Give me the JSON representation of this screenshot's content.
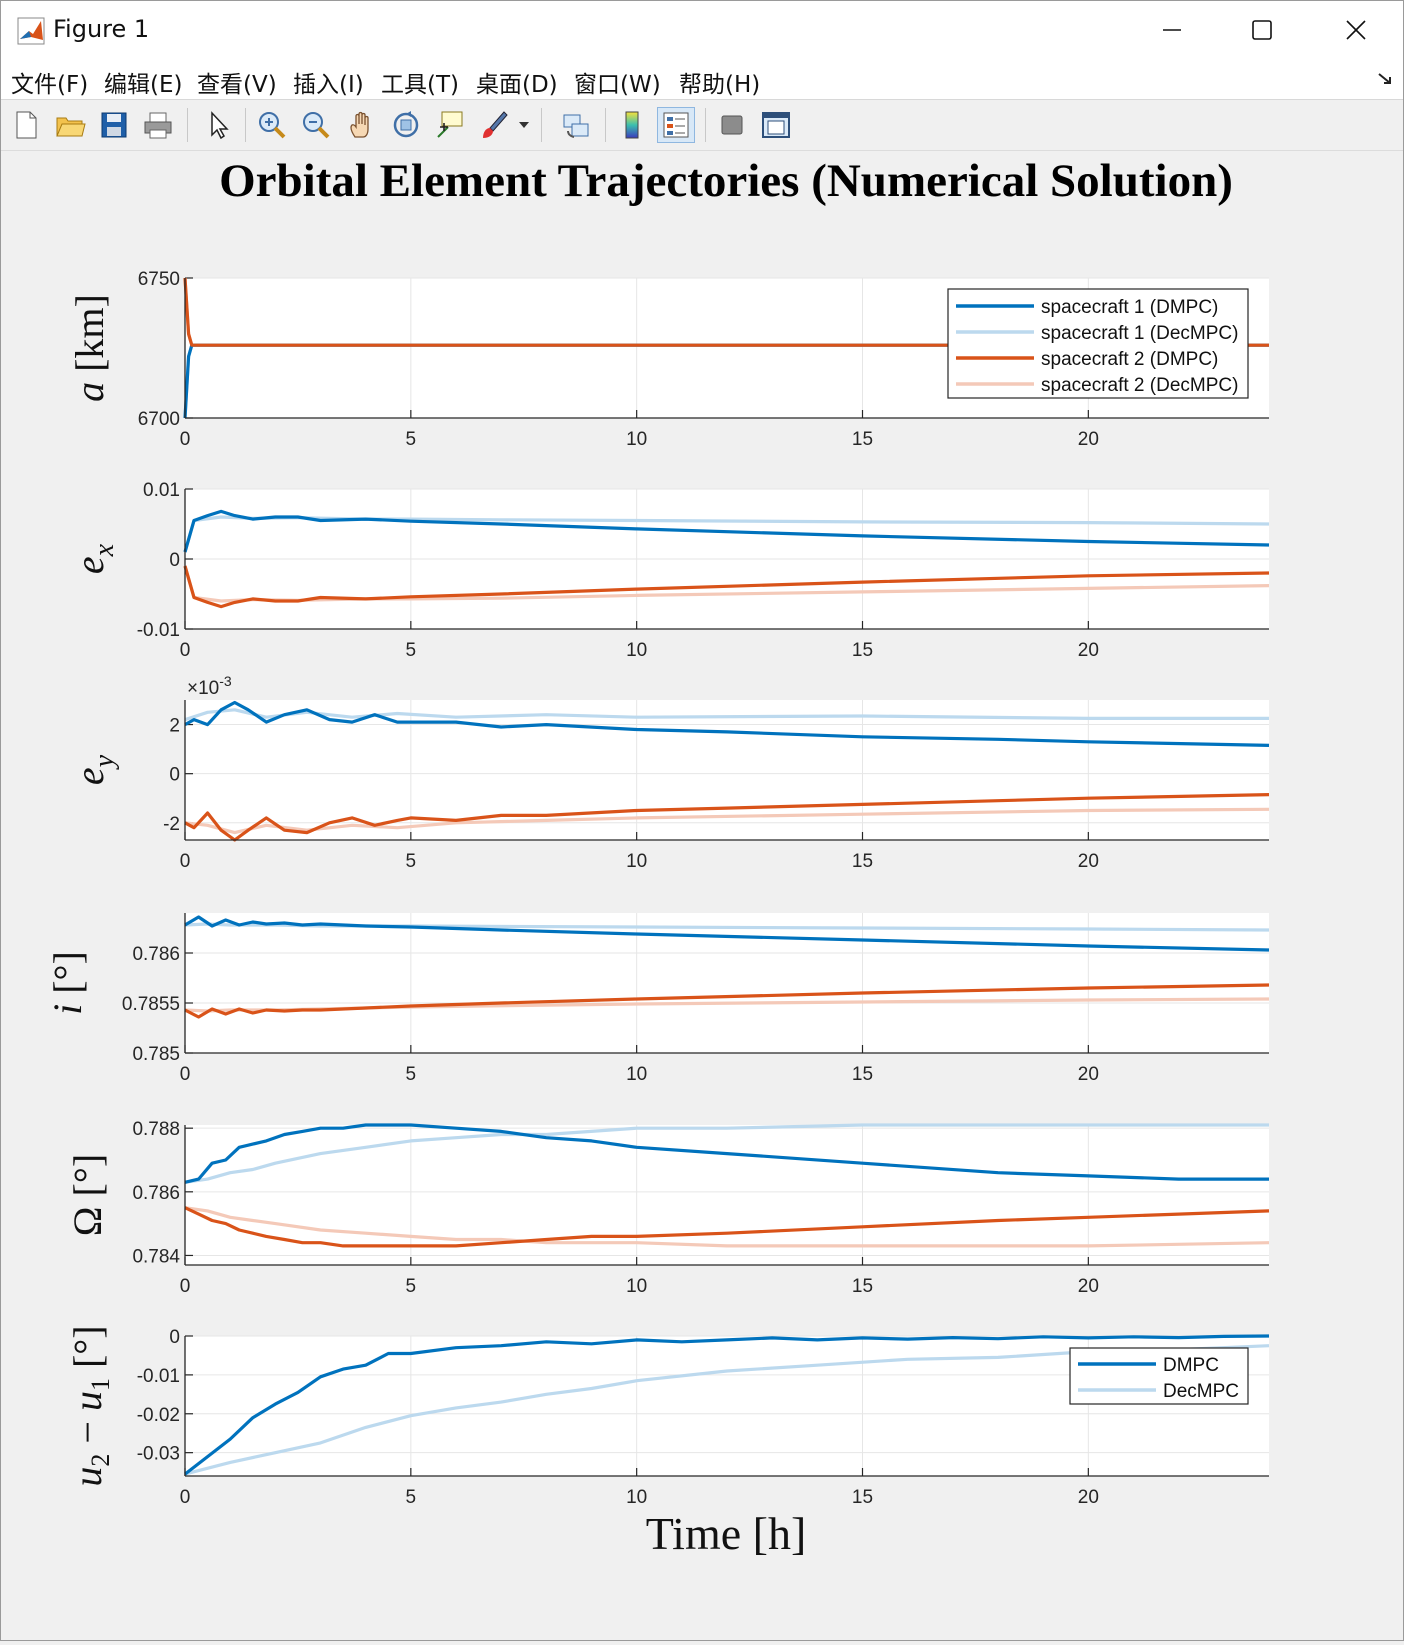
{
  "window": {
    "title": "Figure 1"
  },
  "menu": [
    "文件(F)",
    "编辑(E)",
    "查看(V)",
    "插入(I)",
    "工具(T)",
    "桌面(D)",
    "窗口(W)",
    "帮助(H)"
  ],
  "toolbar_icons": [
    "new-figure-icon",
    "open-file-icon",
    "save-icon",
    "print-icon",
    "select-arrow-icon",
    "zoom-in-icon",
    "zoom-out-icon",
    "pan-hand-icon",
    "rotate-3d-icon",
    "data-cursor-icon",
    "brush-icon",
    "brush-dropdown-icon",
    "link-plot-icon",
    "colorbar-icon",
    "legend-icon",
    "hide-plot-tools-icon",
    "show-plot-tools-icon"
  ],
  "colors": {
    "s1_dmpc": "#0072bd",
    "s1_dec": "#bcd9ee",
    "s2_dmpc": "#d95319",
    "s2_dec": "#f4c9b8"
  },
  "chart_data": {
    "type": "line",
    "title": "Orbital Element Trajectories (Numerical Solution)",
    "xlabel": "Time [h]",
    "xlim": [
      0,
      24
    ],
    "xticks": [
      0,
      5,
      10,
      15,
      20
    ],
    "legend_main": [
      "spacecraft 1 (DMPC)",
      "spacecraft 1 (DecMPC)",
      "spacecraft 2 (DMPC)",
      "spacecraft 2 (DecMPC)"
    ],
    "legend_diff": [
      "DMPC",
      "DecMPC"
    ],
    "subplots": [
      {
        "ylabel": "a [km]",
        "ylim": [
          6700,
          6750
        ],
        "yticks": [
          6700,
          6750
        ],
        "ytick_labels": [
          "6700",
          "6750"
        ],
        "series": [
          {
            "name": "spacecraft 1 (DMPC)",
            "color": "s1_dmpc",
            "x": [
              0,
              0.08,
              0.15,
              0.3,
              24
            ],
            "y": [
              6700,
              6722,
              6726,
              6726,
              6726
            ]
          },
          {
            "name": "spacecraft 1 (DecMPC)",
            "color": "s1_dec",
            "x": [
              0,
              0.08,
              0.15,
              0.3,
              24
            ],
            "y": [
              6700,
              6722,
              6726,
              6726,
              6726
            ]
          },
          {
            "name": "spacecraft 2 (DMPC)",
            "color": "s2_dmpc",
            "x": [
              0,
              0.08,
              0.15,
              0.3,
              24
            ],
            "y": [
              6750,
              6730,
              6726,
              6726,
              6726
            ]
          },
          {
            "name": "spacecraft 2 (DecMPC)",
            "color": "s2_dec",
            "x": [
              0,
              0.08,
              0.15,
              0.3,
              24
            ],
            "y": [
              6750,
              6730,
              6726,
              6726,
              6726
            ]
          }
        ]
      },
      {
        "ylabel": "e_x",
        "ylim": [
          -0.01,
          0.01
        ],
        "yticks": [
          -0.01,
          0,
          0.01
        ],
        "ytick_labels": [
          "-0.01",
          "0",
          "0.01"
        ],
        "series": [
          {
            "name": "spacecraft 1 (DMPC)",
            "color": "s1_dmpc",
            "x": [
              0,
              0.2,
              0.5,
              0.8,
              1.1,
              1.5,
              2,
              2.5,
              3,
              4,
              5,
              7,
              10,
              15,
              20,
              24
            ],
            "y": [
              0.001,
              0.0055,
              0.0062,
              0.0068,
              0.0062,
              0.0057,
              0.006,
              0.006,
              0.0055,
              0.0057,
              0.0054,
              0.005,
              0.0043,
              0.0033,
              0.0025,
              0.002
            ]
          },
          {
            "name": "spacecraft 1 (DecMPC)",
            "color": "s1_dec",
            "x": [
              0,
              0.2,
              0.8,
              1.5,
              2.5,
              4,
              5,
              7,
              10,
              15,
              20,
              24
            ],
            "y": [
              0.001,
              0.0055,
              0.006,
              0.0058,
              0.0059,
              0.0057,
              0.0057,
              0.0056,
              0.0055,
              0.0053,
              0.0052,
              0.005
            ]
          },
          {
            "name": "spacecraft 2 (DMPC)",
            "color": "s2_dmpc",
            "x": [
              0,
              0.2,
              0.5,
              0.8,
              1.1,
              1.5,
              2,
              2.5,
              3,
              4,
              5,
              7,
              10,
              15,
              20,
              24
            ],
            "y": [
              -0.001,
              -0.0055,
              -0.0062,
              -0.0068,
              -0.0062,
              -0.0057,
              -0.006,
              -0.006,
              -0.0055,
              -0.0057,
              -0.0054,
              -0.005,
              -0.0043,
              -0.0033,
              -0.0024,
              -0.002
            ]
          },
          {
            "name": "spacecraft 2 (DecMPC)",
            "color": "s2_dec",
            "x": [
              0,
              0.2,
              0.8,
              1.5,
              2.5,
              4,
              5,
              7,
              10,
              15,
              20,
              24
            ],
            "y": [
              -0.001,
              -0.0055,
              -0.006,
              -0.0058,
              -0.0059,
              -0.0057,
              -0.0057,
              -0.0056,
              -0.0052,
              -0.0047,
              -0.0042,
              -0.0038
            ]
          }
        ]
      },
      {
        "ylabel": "e_y",
        "ylim": [
          -2.7,
          3.0
        ],
        "yticks": [
          -2,
          0,
          2
        ],
        "ytick_labels": [
          "-2",
          "0",
          "2"
        ],
        "exponent_label": "×10",
        "series": [
          {
            "name": "spacecraft 1 (DMPC)",
            "color": "s1_dmpc",
            "x": [
              0,
              0.2,
              0.5,
              0.8,
              1.1,
              1.4,
              1.8,
              2.2,
              2.7,
              3.2,
              3.7,
              4.2,
              4.7,
              5,
              6,
              7,
              8,
              10,
              12,
              15,
              18,
              20,
              24
            ],
            "y": [
              2.0,
              2.2,
              2.0,
              2.6,
              2.9,
              2.6,
              2.1,
              2.4,
              2.6,
              2.2,
              2.1,
              2.4,
              2.1,
              2.1,
              2.1,
              1.9,
              2.0,
              1.8,
              1.7,
              1.5,
              1.4,
              1.3,
              1.15
            ]
          },
          {
            "name": "spacecraft 1 (DecMPC)",
            "color": "s1_dec",
            "x": [
              0,
              0.5,
              1.1,
              1.8,
              2.7,
              3.7,
              4.7,
              6,
              8,
              10,
              15,
              20,
              24
            ],
            "y": [
              2.2,
              2.5,
              2.6,
              2.3,
              2.5,
              2.3,
              2.45,
              2.3,
              2.4,
              2.3,
              2.35,
              2.25,
              2.25
            ]
          },
          {
            "name": "spacecraft 2 (DMPC)",
            "color": "s2_dmpc",
            "x": [
              0,
              0.2,
              0.5,
              0.8,
              1.1,
              1.4,
              1.8,
              2.2,
              2.7,
              3.2,
              3.7,
              4.2,
              4.7,
              5,
              6,
              7,
              8,
              10,
              12,
              15,
              18,
              20,
              24
            ],
            "y": [
              -2.0,
              -2.2,
              -1.6,
              -2.3,
              -2.7,
              -2.3,
              -1.8,
              -2.3,
              -2.4,
              -2.0,
              -1.8,
              -2.1,
              -1.9,
              -1.8,
              -1.9,
              -1.7,
              -1.7,
              -1.5,
              -1.4,
              -1.25,
              -1.1,
              -1.0,
              -0.85
            ]
          },
          {
            "name": "spacecraft 2 (DecMPC)",
            "color": "s2_dec",
            "x": [
              0,
              0.5,
              1.1,
              1.8,
              2.7,
              3.7,
              4.7,
              6,
              8,
              10,
              15,
              20,
              24
            ],
            "y": [
              -2.0,
              -2.1,
              -2.4,
              -2.1,
              -2.3,
              -2.1,
              -2.2,
              -2.0,
              -1.9,
              -1.8,
              -1.65,
              -1.5,
              -1.45
            ]
          }
        ]
      },
      {
        "ylabel": "i [°]",
        "ylim": [
          0.785,
          0.7864
        ],
        "yticks": [
          0.785,
          0.7855,
          0.786
        ],
        "ytick_labels": [
          "0.785",
          "0.7855",
          "0.786"
        ],
        "series": [
          {
            "name": "spacecraft 1 (DMPC)",
            "color": "s1_dmpc",
            "x": [
              0,
              0.3,
              0.6,
              0.9,
              1.2,
              1.5,
              1.8,
              2.2,
              2.6,
              3,
              4,
              5,
              7,
              10,
              15,
              20,
              24
            ],
            "y": [
              0.78628,
              0.78636,
              0.78627,
              0.78633,
              0.78628,
              0.78631,
              0.78629,
              0.7863,
              0.78628,
              0.78629,
              0.78627,
              0.78626,
              0.78623,
              0.78619,
              0.78613,
              0.78607,
              0.78603
            ]
          },
          {
            "name": "spacecraft 1 (DecMPC)",
            "color": "s1_dec",
            "x": [
              0,
              0.5,
              1,
              2,
              3,
              5,
              10,
              15,
              20,
              24
            ],
            "y": [
              0.78628,
              0.78629,
              0.78628,
              0.78628,
              0.78627,
              0.78627,
              0.78626,
              0.78625,
              0.78624,
              0.78623
            ]
          },
          {
            "name": "spacecraft 2 (DMPC)",
            "color": "s2_dmpc",
            "x": [
              0,
              0.3,
              0.6,
              0.9,
              1.2,
              1.5,
              1.8,
              2.2,
              2.6,
              3,
              4,
              5,
              7,
              10,
              15,
              20,
              24
            ],
            "y": [
              0.78543,
              0.78536,
              0.78544,
              0.78539,
              0.78544,
              0.7854,
              0.78543,
              0.78542,
              0.78543,
              0.78543,
              0.78545,
              0.78547,
              0.7855,
              0.78554,
              0.7856,
              0.78565,
              0.78568
            ]
          },
          {
            "name": "spacecraft 2 (DecMPC)",
            "color": "s2_dec",
            "x": [
              0,
              0.5,
              1,
              2,
              3,
              5,
              10,
              15,
              20,
              24
            ],
            "y": [
              0.78543,
              0.78542,
              0.78543,
              0.78543,
              0.78544,
              0.78546,
              0.78549,
              0.78551,
              0.78553,
              0.78554
            ]
          }
        ]
      },
      {
        "ylabel": "Ω [°]",
        "ylim": [
          0.7837,
          0.7881
        ],
        "yticks": [
          0.784,
          0.786,
          0.788
        ],
        "ytick_labels": [
          "0.784",
          "0.786",
          "0.788"
        ],
        "series": [
          {
            "name": "spacecraft 1 (DMPC)",
            "color": "s1_dmpc",
            "x": [
              0,
              0.3,
              0.6,
              0.9,
              1.2,
              1.5,
              1.8,
              2.2,
              2.6,
              3,
              3.5,
              4,
              5,
              6,
              7,
              8,
              9,
              10,
              12,
              15,
              18,
              20,
              22,
              24
            ],
            "y": [
              0.7863,
              0.7864,
              0.7869,
              0.787,
              0.7874,
              0.7875,
              0.7876,
              0.7878,
              0.7879,
              0.788,
              0.788,
              0.7881,
              0.7881,
              0.788,
              0.7879,
              0.7877,
              0.7876,
              0.7874,
              0.7872,
              0.7869,
              0.7866,
              0.7865,
              0.7864,
              0.7864
            ]
          },
          {
            "name": "spacecraft 1 (DecMPC)",
            "color": "s1_dec",
            "x": [
              0,
              0.5,
              1,
              1.5,
              2,
              3,
              4,
              5,
              6,
              7,
              8,
              10,
              12,
              15,
              18,
              20,
              24
            ],
            "y": [
              0.7863,
              0.7864,
              0.7866,
              0.7867,
              0.7869,
              0.7872,
              0.7874,
              0.7876,
              0.7877,
              0.7878,
              0.7878,
              0.788,
              0.788,
              0.7881,
              0.7881,
              0.7881,
              0.7881
            ]
          },
          {
            "name": "spacecraft 2 (DMPC)",
            "color": "s2_dmpc",
            "x": [
              0,
              0.3,
              0.6,
              0.9,
              1.2,
              1.5,
              1.8,
              2.2,
              2.6,
              3,
              3.5,
              4,
              5,
              6,
              7,
              8,
              9,
              10,
              12,
              15,
              18,
              20,
              22,
              24
            ],
            "y": [
              0.7855,
              0.7853,
              0.7851,
              0.785,
              0.7848,
              0.7847,
              0.7846,
              0.7845,
              0.7844,
              0.7844,
              0.7843,
              0.7843,
              0.7843,
              0.7843,
              0.7844,
              0.7845,
              0.7846,
              0.7846,
              0.7847,
              0.7849,
              0.7851,
              0.7852,
              0.7853,
              0.7854
            ]
          },
          {
            "name": "spacecraft 2 (DecMPC)",
            "color": "s2_dec",
            "x": [
              0,
              0.5,
              1,
              1.5,
              2,
              3,
              4,
              5,
              6,
              7,
              8,
              10,
              12,
              15,
              18,
              20,
              24
            ],
            "y": [
              0.7855,
              0.7854,
              0.7852,
              0.7851,
              0.785,
              0.7848,
              0.7847,
              0.7846,
              0.7845,
              0.7845,
              0.7844,
              0.7844,
              0.7843,
              0.7843,
              0.7843,
              0.7843,
              0.7844
            ]
          }
        ]
      },
      {
        "ylabel": "u₂ − u₁ [°]",
        "ylim": [
          -0.036,
          0.0
        ],
        "yticks": [
          -0.03,
          -0.02,
          -0.01,
          0
        ],
        "ytick_labels": [
          "-0.03",
          "-0.02",
          "-0.01",
          "0"
        ],
        "series": [
          {
            "name": "DMPC",
            "color": "s1_dmpc",
            "x": [
              0,
              0.5,
              1,
              1.5,
              2,
              2.5,
              3,
              3.5,
              4,
              4.5,
              5,
              6,
              7,
              8,
              9,
              10,
              11,
              12,
              13,
              14,
              15,
              16,
              17,
              18,
              19,
              20,
              21,
              22,
              23,
              24
            ],
            "y": [
              -0.0355,
              -0.031,
              -0.0265,
              -0.021,
              -0.0175,
              -0.0145,
              -0.0105,
              -0.0085,
              -0.0075,
              -0.0045,
              -0.0045,
              -0.003,
              -0.0025,
              -0.0015,
              -0.002,
              -0.001,
              -0.0015,
              -0.001,
              -0.0005,
              -0.001,
              -0.0005,
              -0.0008,
              -0.0004,
              -0.0007,
              -0.0002,
              -0.0005,
              -0.0002,
              -0.0004,
              -0.0001,
              0.0
            ]
          },
          {
            "name": "DecMPC",
            "color": "s1_dec",
            "x": [
              0,
              1,
              2,
              3,
              4,
              5,
              6,
              7,
              8,
              9,
              10,
              12,
              14,
              16,
              18,
              20,
              22,
              24
            ],
            "y": [
              -0.0355,
              -0.0325,
              -0.03,
              -0.0275,
              -0.0235,
              -0.0205,
              -0.0185,
              -0.017,
              -0.015,
              -0.0135,
              -0.0115,
              -0.009,
              -0.0075,
              -0.006,
              -0.0055,
              -0.004,
              -0.0035,
              -0.0025
            ]
          }
        ]
      }
    ]
  }
}
